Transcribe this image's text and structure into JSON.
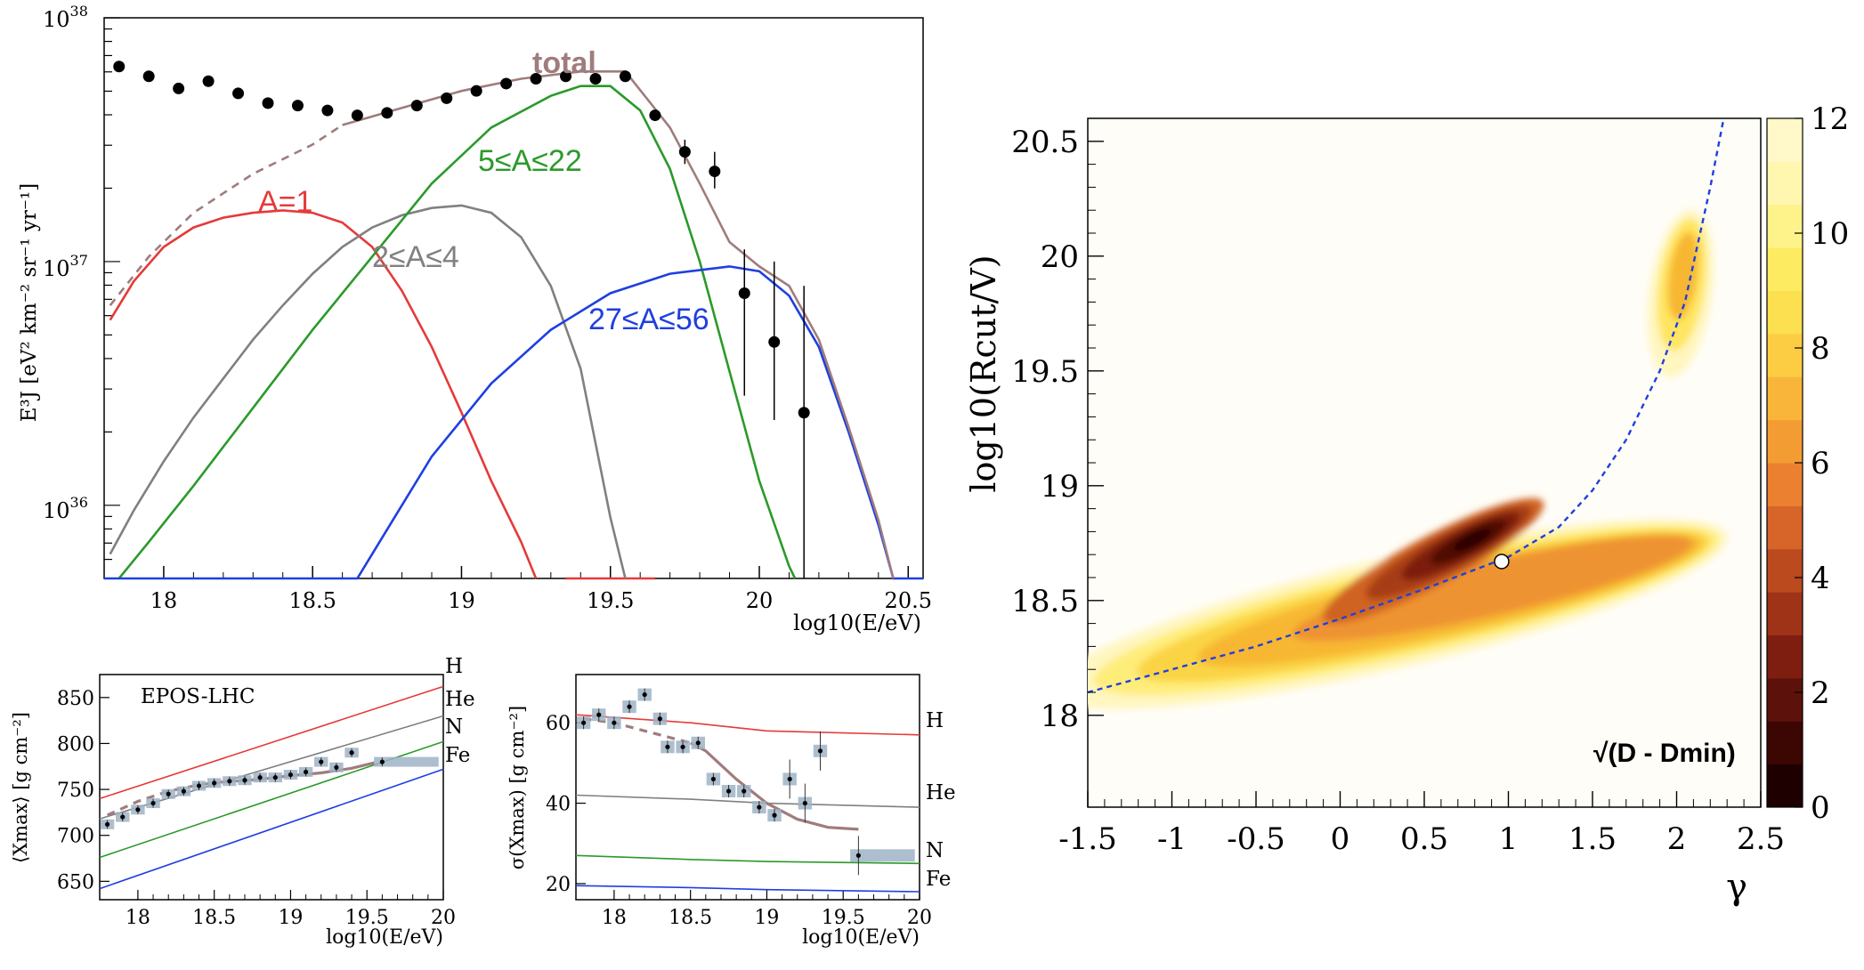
{
  "colors": {
    "total": "#a07c7c",
    "light": "#e53a3a",
    "medium": "#808080",
    "intermediate": "#2a9a2a",
    "heavy": "#1f3fe0",
    "data": "#000000",
    "dashed_fit": "#1f3fe0",
    "band": "#9fb3c6"
  },
  "chart_data": [
    {
      "id": "spectrum",
      "type": "line",
      "title": "",
      "xlabel": "log10(E/eV)",
      "ylabel": "E³J [eV² km⁻² sr⁻¹ yr⁻¹]",
      "xlim": [
        17.8,
        20.55
      ],
      "ylim_log10": [
        35.7,
        38.0
      ],
      "xticks": [
        "18",
        "18.5",
        "19",
        "19.5",
        "20",
        "20.5"
      ],
      "ytick_labels": [
        {
          "base": "10",
          "exp": "38",
          "v": 38
        },
        {
          "base": "10",
          "exp": "37",
          "v": 37
        },
        {
          "base": "10",
          "exp": "36",
          "v": 36
        }
      ],
      "curve_labels": {
        "total": "total",
        "light": "A=1",
        "medium": "2≤A≤4",
        "intermediate": "5≤A≤22",
        "heavy": "27≤A≤56"
      },
      "series": [
        {
          "name": "light",
          "label_key": "light",
          "color_key": "light",
          "points": [
            [
              17.82,
              36.76
            ],
            [
              17.9,
              36.92
            ],
            [
              18.0,
              37.06
            ],
            [
              18.1,
              37.14
            ],
            [
              18.2,
              37.18
            ],
            [
              18.3,
              37.2
            ],
            [
              18.4,
              37.21
            ],
            [
              18.5,
              37.2
            ],
            [
              18.6,
              37.16
            ],
            [
              18.7,
              37.06
            ],
            [
              18.8,
              36.88
            ],
            [
              18.9,
              36.65
            ],
            [
              19.0,
              36.38
            ],
            [
              19.1,
              36.1
            ],
            [
              19.2,
              35.85
            ],
            [
              19.25,
              35.7
            ]
          ]
        },
        {
          "name": "light-tail",
          "color_key": "light",
          "points": [
            [
              19.35,
              35.7
            ],
            [
              19.65,
              35.7
            ]
          ]
        },
        {
          "name": "medium",
          "label_key": "medium",
          "color_key": "medium",
          "points": [
            [
              17.82,
              35.8
            ],
            [
              17.9,
              35.98
            ],
            [
              18.0,
              36.18
            ],
            [
              18.1,
              36.36
            ],
            [
              18.2,
              36.52
            ],
            [
              18.3,
              36.68
            ],
            [
              18.4,
              36.82
            ],
            [
              18.5,
              36.95
            ],
            [
              18.6,
              37.06
            ],
            [
              18.7,
              37.14
            ],
            [
              18.8,
              37.19
            ],
            [
              18.9,
              37.22
            ],
            [
              19.0,
              37.23
            ],
            [
              19.1,
              37.2
            ],
            [
              19.2,
              37.1
            ],
            [
              19.3,
              36.9
            ],
            [
              19.4,
              36.56
            ],
            [
              19.5,
              35.95
            ],
            [
              19.55,
              35.7
            ]
          ]
        },
        {
          "name": "intermediate",
          "label_key": "intermediate",
          "color_key": "intermediate",
          "points": [
            [
              17.85,
              35.7
            ],
            [
              17.95,
              35.85
            ],
            [
              18.1,
              36.08
            ],
            [
              18.3,
              36.4
            ],
            [
              18.5,
              36.72
            ],
            [
              18.7,
              37.02
            ],
            [
              18.9,
              37.32
            ],
            [
              19.1,
              37.55
            ],
            [
              19.3,
              37.68
            ],
            [
              19.4,
              37.72
            ],
            [
              19.5,
              37.72
            ],
            [
              19.6,
              37.62
            ],
            [
              19.7,
              37.38
            ],
            [
              19.8,
              37.0
            ],
            [
              19.9,
              36.55
            ],
            [
              20.0,
              36.1
            ],
            [
              20.1,
              35.75
            ],
            [
              20.12,
              35.7
            ]
          ]
        },
        {
          "name": "heavy",
          "label_key": "heavy",
          "color_key": "heavy",
          "points": [
            [
              17.8,
              35.7
            ],
            [
              18.65,
              35.7
            ],
            [
              18.75,
              35.9
            ],
            [
              18.9,
              36.2
            ],
            [
              19.1,
              36.5
            ],
            [
              19.3,
              36.72
            ],
            [
              19.5,
              36.87
            ],
            [
              19.7,
              36.95
            ],
            [
              19.9,
              36.98
            ],
            [
              20.0,
              36.96
            ],
            [
              20.1,
              36.86
            ],
            [
              20.2,
              36.65
            ],
            [
              20.3,
              36.3
            ],
            [
              20.4,
              35.92
            ],
            [
              20.45,
              35.7
            ],
            [
              20.55,
              35.7
            ]
          ]
        },
        {
          "name": "total",
          "label_key": "total",
          "color_key": "total",
          "points": [
            [
              18.6,
              37.56
            ],
            [
              18.8,
              37.63
            ],
            [
              19.0,
              37.7
            ],
            [
              19.2,
              37.75
            ],
            [
              19.4,
              37.78
            ],
            [
              19.55,
              37.78
            ],
            [
              19.7,
              37.55
            ],
            [
              19.8,
              37.32
            ],
            [
              19.9,
              37.08
            ],
            [
              20.0,
              36.98
            ],
            [
              20.1,
              36.9
            ],
            [
              20.2,
              36.68
            ],
            [
              20.3,
              36.32
            ],
            [
              20.4,
              35.94
            ],
            [
              20.45,
              35.7
            ]
          ]
        },
        {
          "name": "total-extrapolated",
          "color_key": "total",
          "dashed": true,
          "points": [
            [
              17.82,
              36.82
            ],
            [
              17.95,
              37.02
            ],
            [
              18.1,
              37.2
            ],
            [
              18.3,
              37.36
            ],
            [
              18.5,
              37.48
            ],
            [
              18.6,
              37.56
            ]
          ]
        }
      ],
      "data_points": [
        {
          "x": 17.85,
          "y": 37.8
        },
        {
          "x": 17.95,
          "y": 37.76
        },
        {
          "x": 18.05,
          "y": 37.71
        },
        {
          "x": 18.15,
          "y": 37.74
        },
        {
          "x": 18.25,
          "y": 37.69
        },
        {
          "x": 18.35,
          "y": 37.65
        },
        {
          "x": 18.45,
          "y": 37.64
        },
        {
          "x": 18.55,
          "y": 37.62
        },
        {
          "x": 18.65,
          "y": 37.6
        },
        {
          "x": 18.75,
          "y": 37.61
        },
        {
          "x": 18.85,
          "y": 37.64
        },
        {
          "x": 18.95,
          "y": 37.67
        },
        {
          "x": 19.05,
          "y": 37.7
        },
        {
          "x": 19.15,
          "y": 37.73
        },
        {
          "x": 19.25,
          "y": 37.75
        },
        {
          "x": 19.35,
          "y": 37.76
        },
        {
          "x": 19.45,
          "y": 37.75
        },
        {
          "x": 19.55,
          "y": 37.76
        },
        {
          "x": 19.65,
          "y": 37.6
        },
        {
          "x": 19.75,
          "y": 37.45,
          "err": [
            37.4,
            37.5
          ]
        },
        {
          "x": 19.85,
          "y": 37.37,
          "err": [
            37.3,
            37.45
          ]
        },
        {
          "x": 19.95,
          "y": 36.87,
          "err": [
            36.45,
            37.05
          ]
        },
        {
          "x": 20.05,
          "y": 36.67,
          "err": [
            36.35,
            37.0
          ]
        },
        {
          "x": 20.15,
          "y": 36.38,
          "err": [
            35.7,
            36.9
          ]
        }
      ]
    },
    {
      "id": "xmax",
      "type": "line",
      "title": "EPOS-LHC",
      "xlabel": "log10(E/eV)",
      "ylabel": "⟨Xmax⟩ [g cm⁻²]",
      "xlim": [
        17.75,
        20.0
      ],
      "ylim": [
        630,
        875
      ],
      "xticks": [
        18,
        18.5,
        19,
        19.5,
        20
      ],
      "yticks": [
        650,
        700,
        750,
        800,
        850
      ],
      "legend": [
        "H",
        "He",
        "N",
        "Fe"
      ],
      "series": [
        {
          "name": "H",
          "color_key": "light",
          "points": [
            [
              17.75,
              740
            ],
            [
              20.0,
              862
            ]
          ]
        },
        {
          "name": "He",
          "color_key": "medium",
          "points": [
            [
              17.75,
              718
            ],
            [
              20.0,
              830
            ]
          ]
        },
        {
          "name": "N",
          "color_key": "intermediate",
          "points": [
            [
              17.75,
              676
            ],
            [
              20.0,
              802
            ]
          ]
        },
        {
          "name": "Fe",
          "color_key": "heavy",
          "points": [
            [
              17.75,
              642
            ],
            [
              20.0,
              772
            ]
          ]
        },
        {
          "name": "model",
          "color_key": "total",
          "points": [
            [
              18.55,
              758
            ],
            [
              18.8,
              761
            ],
            [
              19.0,
              765
            ],
            [
              19.2,
              768
            ],
            [
              19.4,
              773
            ],
            [
              19.55,
              779
            ]
          ]
        },
        {
          "name": "model-extrapolated",
          "color_key": "total",
          "dashed": true,
          "points": [
            [
              17.8,
              722
            ],
            [
              18.0,
              737
            ],
            [
              18.2,
              748
            ],
            [
              18.4,
              755
            ],
            [
              18.55,
              758
            ]
          ]
        }
      ],
      "data_points": [
        {
          "x": 17.8,
          "y": 712
        },
        {
          "x": 17.9,
          "y": 720
        },
        {
          "x": 18.0,
          "y": 728
        },
        {
          "x": 18.1,
          "y": 735
        },
        {
          "x": 18.2,
          "y": 745
        },
        {
          "x": 18.3,
          "y": 748
        },
        {
          "x": 18.4,
          "y": 754
        },
        {
          "x": 18.5,
          "y": 757
        },
        {
          "x": 18.6,
          "y": 759
        },
        {
          "x": 18.7,
          "y": 760
        },
        {
          "x": 18.8,
          "y": 763
        },
        {
          "x": 18.9,
          "y": 763
        },
        {
          "x": 19.0,
          "y": 766
        },
        {
          "x": 19.1,
          "y": 769
        },
        {
          "x": 19.2,
          "y": 780
        },
        {
          "x": 19.3,
          "y": 774
        },
        {
          "x": 19.4,
          "y": 790
        },
        {
          "x": 19.6,
          "y": 780
        }
      ]
    },
    {
      "id": "sigma",
      "type": "line",
      "title": "",
      "xlabel": "log10(E/eV)",
      "ylabel": "σ(Xmax) [g cm⁻²]",
      "xlim": [
        17.75,
        20.0
      ],
      "ylim": [
        16,
        72
      ],
      "xticks": [
        18,
        18.5,
        19,
        19.5,
        20
      ],
      "yticks": [
        20,
        40,
        60
      ],
      "legend": [
        "H",
        "He",
        "N",
        "Fe"
      ],
      "series": [
        {
          "name": "H",
          "color_key": "light",
          "points": [
            [
              17.75,
              62
            ],
            [
              18.5,
              60
            ],
            [
              19.0,
              58
            ],
            [
              20.0,
              57
            ]
          ]
        },
        {
          "name": "He",
          "color_key": "medium",
          "points": [
            [
              17.75,
              42
            ],
            [
              18.5,
              41
            ],
            [
              19.0,
              40
            ],
            [
              20.0,
              39
            ]
          ]
        },
        {
          "name": "N",
          "color_key": "intermediate",
          "points": [
            [
              17.75,
              27
            ],
            [
              18.5,
              26
            ],
            [
              19.0,
              25.5
            ],
            [
              20.0,
              25
            ]
          ]
        },
        {
          "name": "Fe",
          "color_key": "heavy",
          "points": [
            [
              17.75,
              19.5
            ],
            [
              18.5,
              19
            ],
            [
              19.0,
              18.5
            ],
            [
              20.0,
              18
            ]
          ]
        },
        {
          "name": "model",
          "color_key": "total",
          "points": [
            [
              18.5,
              55
            ],
            [
              18.6,
              53
            ],
            [
              18.8,
              46
            ],
            [
              19.0,
              40
            ],
            [
              19.2,
              36
            ],
            [
              19.4,
              34
            ],
            [
              19.6,
              33.5
            ]
          ]
        },
        {
          "name": "model-extrapolated",
          "color_key": "total",
          "dashed": true,
          "points": [
            [
              17.8,
              61
            ],
            [
              18.0,
              60
            ],
            [
              18.2,
              58
            ],
            [
              18.4,
              56
            ],
            [
              18.5,
              55
            ]
          ]
        }
      ],
      "data_points": [
        {
          "x": 17.8,
          "y": 60
        },
        {
          "x": 17.9,
          "y": 62
        },
        {
          "x": 18.0,
          "y": 60
        },
        {
          "x": 18.1,
          "y": 64
        },
        {
          "x": 18.2,
          "y": 67
        },
        {
          "x": 18.3,
          "y": 61
        },
        {
          "x": 18.35,
          "y": 54
        },
        {
          "x": 18.45,
          "y": 54
        },
        {
          "x": 18.55,
          "y": 55
        },
        {
          "x": 18.65,
          "y": 46
        },
        {
          "x": 18.75,
          "y": 43
        },
        {
          "x": 18.85,
          "y": 43
        },
        {
          "x": 18.95,
          "y": 39
        },
        {
          "x": 19.05,
          "y": 37
        },
        {
          "x": 19.15,
          "y": 46
        },
        {
          "x": 19.25,
          "y": 40
        },
        {
          "x": 19.35,
          "y": 53
        },
        {
          "x": 19.6,
          "y": 27
        }
      ]
    },
    {
      "id": "fit-map",
      "type": "heatmap",
      "title": "",
      "xlabel": "γ",
      "ylabel": "log10(Rcut/V)",
      "xlim": [
        -1.5,
        2.5
      ],
      "ylim": [
        17.6,
        20.6
      ],
      "xticks": [
        "-1.5",
        "-1",
        "-0.5",
        "0",
        "0.5",
        "1",
        "1.5",
        "2",
        "2.5"
      ],
      "yticks": [
        "18",
        "18.5",
        "19",
        "19.5",
        "20",
        "20.5"
      ],
      "colorbar_label": "√(D - Dmin)",
      "colorbar_range": [
        0,
        12
      ],
      "colorbar_ticks": [
        "0",
        "2",
        "4",
        "6",
        "8",
        "10",
        "12"
      ],
      "best_fit": {
        "x": 0.96,
        "y": 18.67
      },
      "valley_curve": [
        [
          -1.5,
          18.1
        ],
        [
          -1.0,
          18.2
        ],
        [
          -0.5,
          18.3
        ],
        [
          0.0,
          18.42
        ],
        [
          0.5,
          18.55
        ],
        [
          1.0,
          18.69
        ],
        [
          1.3,
          18.82
        ],
        [
          1.5,
          18.98
        ],
        [
          1.7,
          19.2
        ],
        [
          1.9,
          19.5
        ],
        [
          2.05,
          19.8
        ],
        [
          2.2,
          20.3
        ],
        [
          2.28,
          20.6
        ]
      ]
    }
  ]
}
